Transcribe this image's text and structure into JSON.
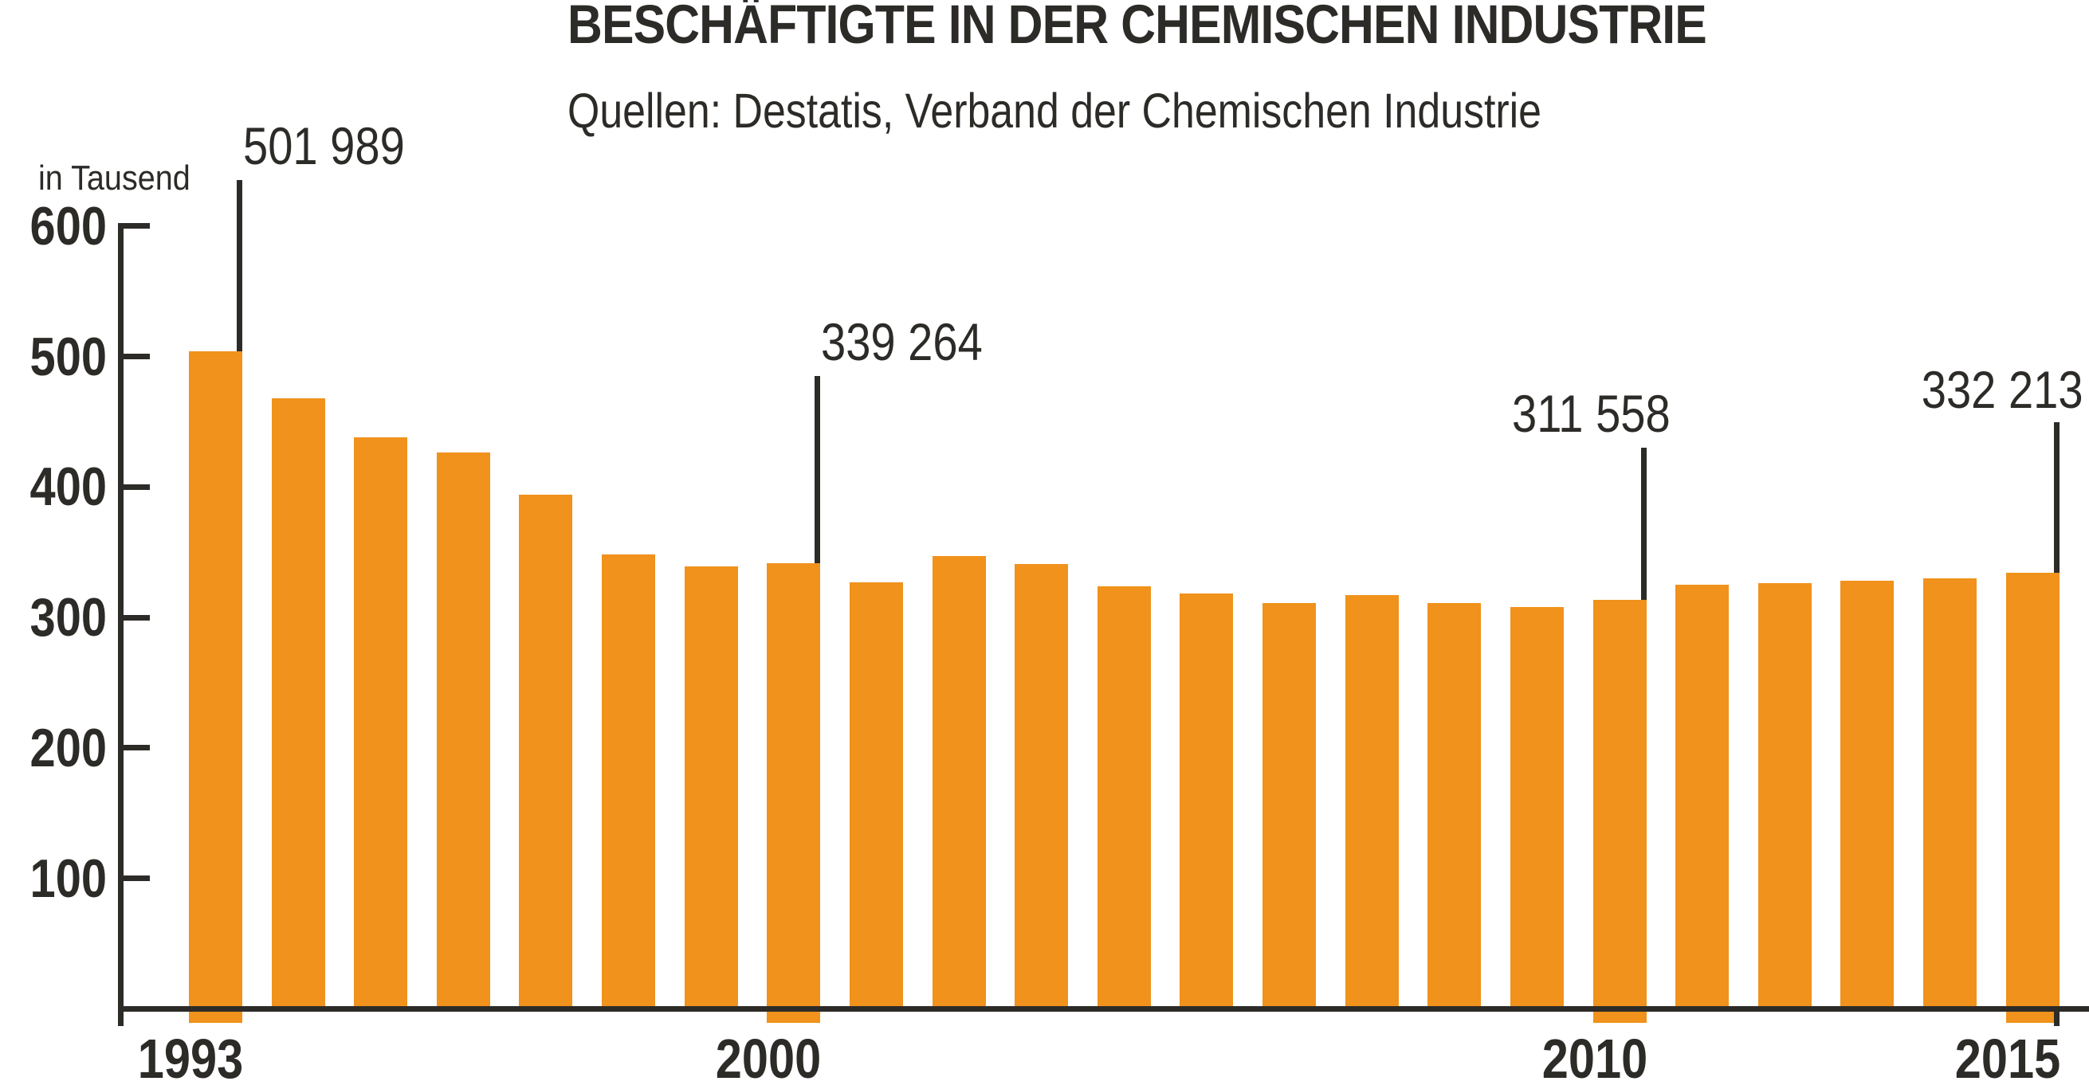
{
  "title": "BESCHÄFTIGTE IN DER CHEMISCHEN INDUSTRIE",
  "subtitle": "Quellen: Destatis, Verband der Chemischen Industrie",
  "unit_label": "in Tausend",
  "colors": {
    "bar": "#F0921C",
    "ink": "#2D2B28"
  },
  "chart_data": {
    "type": "bar",
    "title": "BESCHÄFTIGTE IN DER CHEMISCHEN INDUSTRIE",
    "subtitle": "Quellen: Destatis, Verband der Chemischen Industrie",
    "xlabel": "",
    "ylabel": "in Tausend",
    "ylim": [
      0,
      600
    ],
    "grid": false,
    "legend": null,
    "yticks": [
      600,
      500,
      400,
      300,
      200,
      100
    ],
    "xtick_labels": [
      "1993",
      "2000",
      "2010",
      "2015"
    ],
    "x": [
      1993,
      1994,
      1995,
      1996,
      1997,
      1998,
      1999,
      2000,
      2001,
      2002,
      2003,
      2004,
      2005,
      2006,
      2007,
      2008,
      2009,
      2010,
      2011,
      2012,
      2013,
      2014,
      2015
    ],
    "values": [
      501.989,
      466,
      436,
      424,
      392,
      346,
      337,
      339.264,
      325,
      345,
      339,
      322,
      316,
      309,
      315,
      309,
      306,
      311.558,
      323,
      324,
      326,
      328,
      332.213
    ],
    "annotations": [
      {
        "year": 1993,
        "label": "501 989"
      },
      {
        "year": 2000,
        "label": "339 264"
      },
      {
        "year": 2010,
        "label": "311 558"
      },
      {
        "year": 2015,
        "label": "332 213"
      }
    ]
  }
}
